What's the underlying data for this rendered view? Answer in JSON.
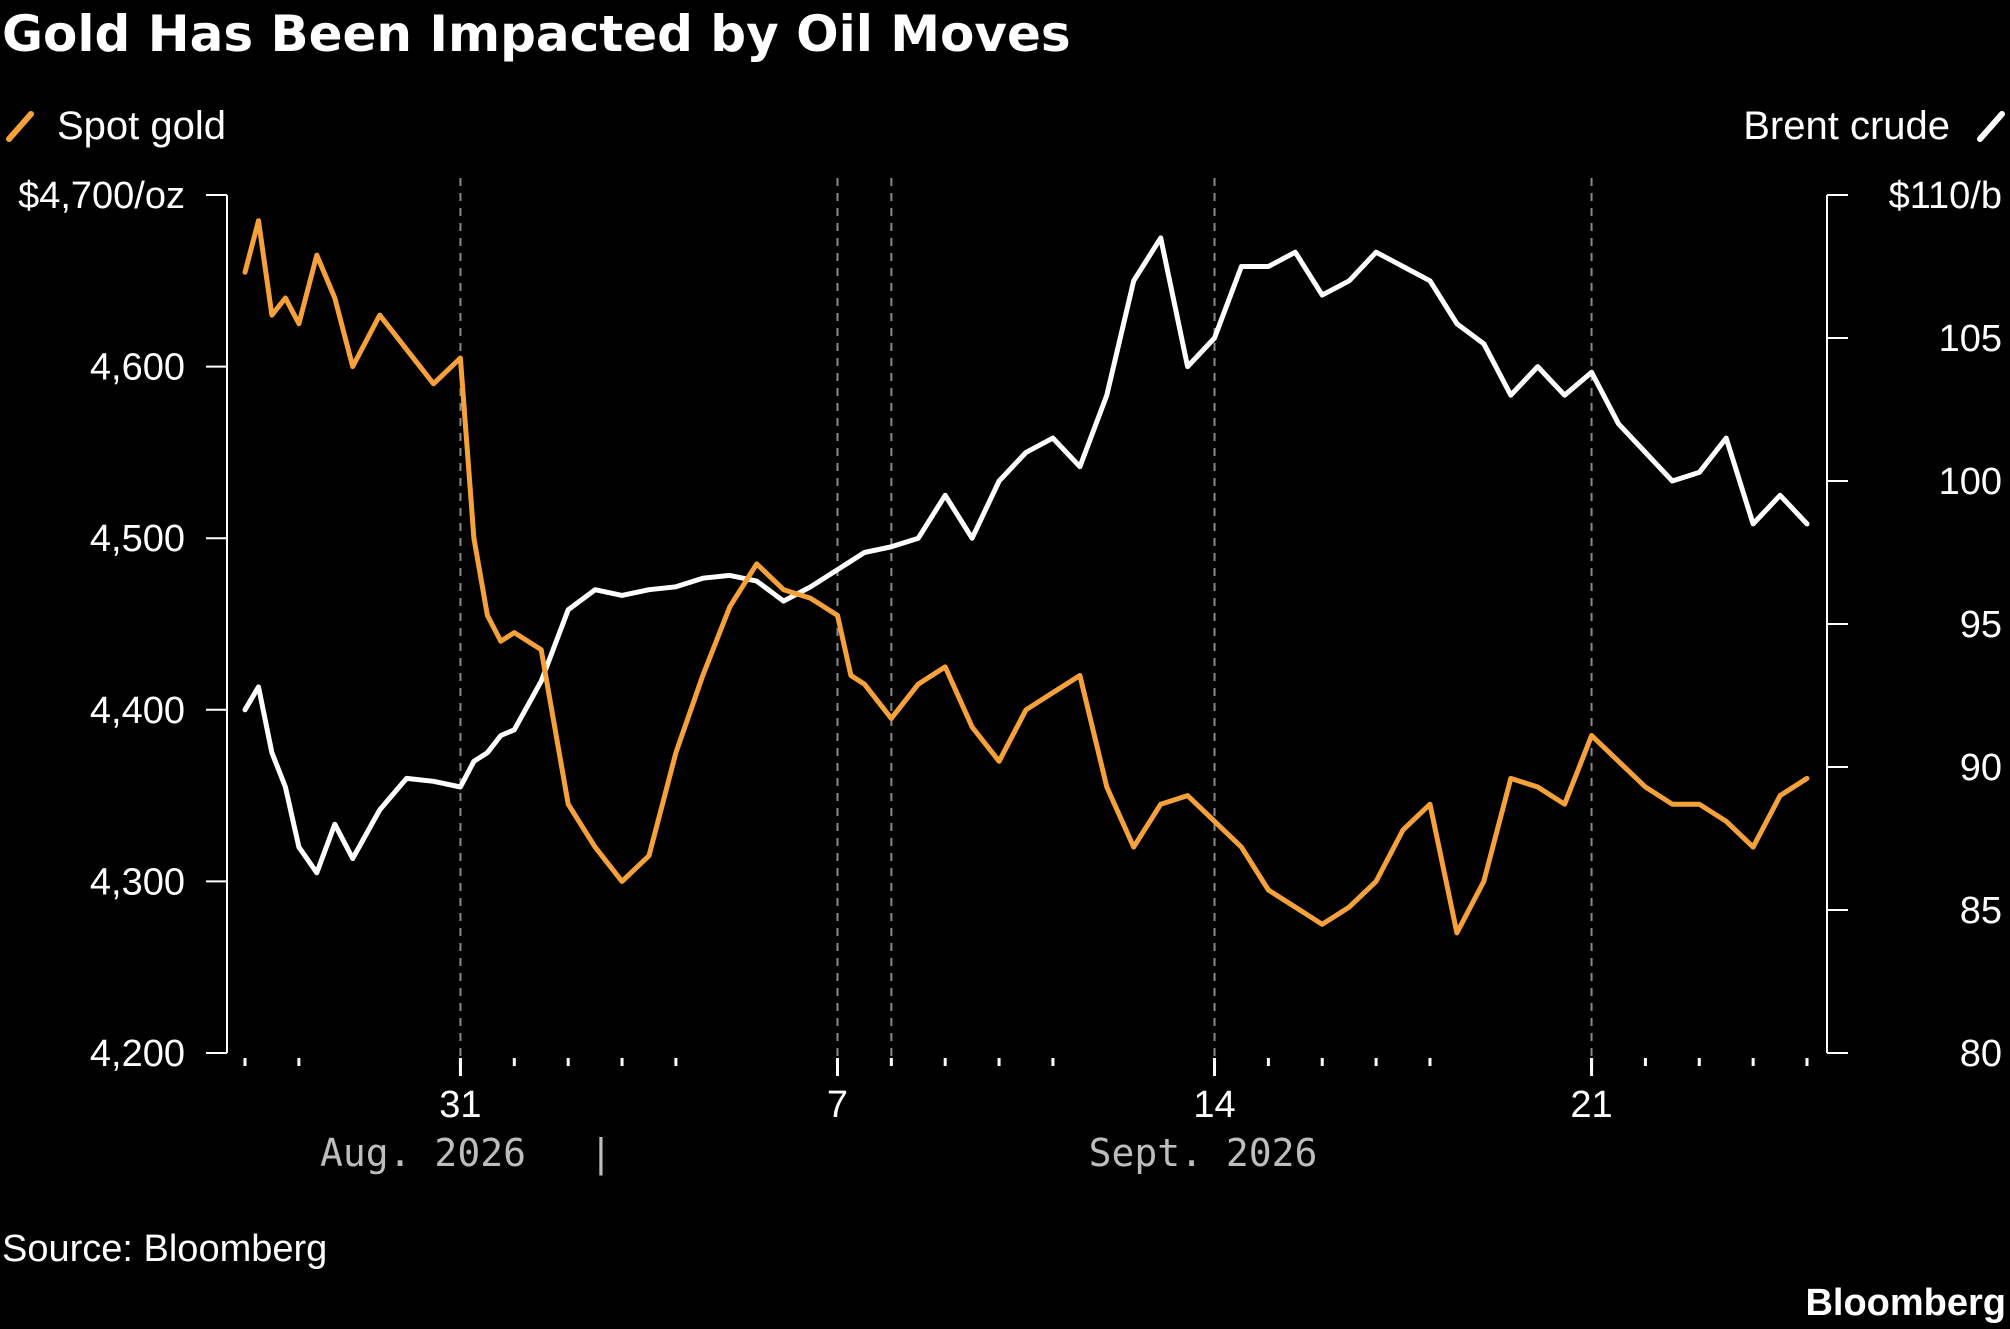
{
  "header": {
    "title": "Gold Has Been Impacted by Oil Moves"
  },
  "legend": {
    "left": "Spot gold",
    "right": "Brent crude"
  },
  "footer": {
    "source": "Source: Bloomberg",
    "brand": "Bloomberg"
  },
  "chart_data": {
    "type": "line",
    "title": "Gold Has Been Impacted by Oil Moves",
    "source": "Source: Bloomberg",
    "grid": false,
    "legend_placement": "top",
    "x_axis": {
      "type": "date",
      "range": [
        "2026-08-27",
        "2026-09-25"
      ],
      "tick_labels": [
        {
          "date": "2026-08-31",
          "label": "31"
        },
        {
          "date": "2026-09-07",
          "label": "7"
        },
        {
          "date": "2026-09-14",
          "label": "14"
        },
        {
          "date": "2026-09-21",
          "label": "21"
        }
      ],
      "month_labels": [
        {
          "date": "2026-08-29",
          "label": "Aug. 2026"
        },
        {
          "date": "2026-09-13",
          "label": "Sept. 2026"
        }
      ],
      "month_divider": "|",
      "event_lines": [
        "2026-08-31",
        "2026-09-07",
        "2026-09-08",
        "2026-09-14",
        "2026-09-21"
      ]
    },
    "y_left": {
      "range": [
        4200,
        4700
      ],
      "ticks": [
        4200,
        4300,
        4400,
        4500,
        4600,
        4700
      ],
      "tick_labels": [
        "4,200",
        "4,300",
        "4,400",
        "4,500",
        "4,600",
        "$4,700/oz"
      ]
    },
    "y_right": {
      "range": [
        80,
        110
      ],
      "ticks": [
        80,
        85,
        90,
        95,
        100,
        105,
        110
      ],
      "tick_labels": [
        "80",
        "85",
        "90",
        "95",
        "100",
        "105",
        "$110/b"
      ]
    },
    "series": [
      {
        "name": "Spot gold",
        "axis": "left",
        "color": "#f7a13a",
        "x": [
          "2026-08-27",
          "2026-08-27 06:00",
          "2026-08-27 12:00",
          "2026-08-27 18:00",
          "2026-08-28",
          "2026-08-28 08:00",
          "2026-08-28 16:00",
          "2026-08-29",
          "2026-08-29 12:00",
          "2026-08-30",
          "2026-08-30 12:00",
          "2026-08-31",
          "2026-08-31 06:00",
          "2026-08-31 12:00",
          "2026-08-31 18:00",
          "2026-09-01",
          "2026-09-01 12:00",
          "2026-09-02",
          "2026-09-02 12:00",
          "2026-09-03",
          "2026-09-03 12:00",
          "2026-09-04",
          "2026-09-04 12:00",
          "2026-09-05",
          "2026-09-05 12:00",
          "2026-09-06",
          "2026-09-06 12:00",
          "2026-09-07",
          "2026-09-07 06:00",
          "2026-09-07 12:00",
          "2026-09-08",
          "2026-09-08 12:00",
          "2026-09-09",
          "2026-09-09 12:00",
          "2026-09-10",
          "2026-09-10 12:00",
          "2026-09-11",
          "2026-09-11 12:00",
          "2026-09-12",
          "2026-09-12 12:00",
          "2026-09-13",
          "2026-09-13 12:00",
          "2026-09-14",
          "2026-09-14 12:00",
          "2026-09-15",
          "2026-09-15 12:00",
          "2026-09-16",
          "2026-09-16 12:00",
          "2026-09-17",
          "2026-09-17 12:00",
          "2026-09-18",
          "2026-09-18 12:00",
          "2026-09-19",
          "2026-09-19 12:00",
          "2026-09-20",
          "2026-09-20 12:00",
          "2026-09-21",
          "2026-09-21 12:00",
          "2026-09-22",
          "2026-09-22 12:00",
          "2026-09-23",
          "2026-09-23 12:00",
          "2026-09-24",
          "2026-09-24 12:00",
          "2026-09-25"
        ],
        "values": [
          4655,
          4685,
          4630,
          4640,
          4625,
          4665,
          4640,
          4600,
          4630,
          4610,
          4590,
          4605,
          4500,
          4455,
          4440,
          4445,
          4435,
          4345,
          4320,
          4300,
          4315,
          4375,
          4420,
          4460,
          4485,
          4470,
          4465,
          4455,
          4420,
          4415,
          4395,
          4415,
          4425,
          4390,
          4370,
          4400,
          4410,
          4420,
          4355,
          4320,
          4345,
          4350,
          4335,
          4320,
          4295,
          4285,
          4275,
          4285,
          4300,
          4330,
          4345,
          4270,
          4300,
          4360,
          4355,
          4345,
          4385,
          4370,
          4355,
          4345,
          4345,
          4335,
          4320,
          4350,
          4360
        ]
      },
      {
        "name": "Brent crude",
        "axis": "right",
        "color": "#ffffff",
        "x": [
          "2026-08-27",
          "2026-08-27 06:00",
          "2026-08-27 12:00",
          "2026-08-27 18:00",
          "2026-08-28",
          "2026-08-28 08:00",
          "2026-08-28 16:00",
          "2026-08-29",
          "2026-08-29 12:00",
          "2026-08-30",
          "2026-08-30 12:00",
          "2026-08-31",
          "2026-08-31 06:00",
          "2026-08-31 12:00",
          "2026-08-31 18:00",
          "2026-09-01",
          "2026-09-01 12:00",
          "2026-09-02",
          "2026-09-02 12:00",
          "2026-09-03",
          "2026-09-03 12:00",
          "2026-09-04",
          "2026-09-04 12:00",
          "2026-09-05",
          "2026-09-05 12:00",
          "2026-09-06",
          "2026-09-06 12:00",
          "2026-09-07",
          "2026-09-07 06:00",
          "2026-09-07 12:00",
          "2026-09-08",
          "2026-09-08 12:00",
          "2026-09-09",
          "2026-09-09 12:00",
          "2026-09-10",
          "2026-09-10 12:00",
          "2026-09-11",
          "2026-09-11 12:00",
          "2026-09-12",
          "2026-09-12 12:00",
          "2026-09-13",
          "2026-09-13 12:00",
          "2026-09-14",
          "2026-09-14 12:00",
          "2026-09-15",
          "2026-09-15 12:00",
          "2026-09-16",
          "2026-09-16 12:00",
          "2026-09-17",
          "2026-09-17 12:00",
          "2026-09-18",
          "2026-09-18 12:00",
          "2026-09-19",
          "2026-09-19 12:00",
          "2026-09-20",
          "2026-09-20 12:00",
          "2026-09-21",
          "2026-09-21 12:00",
          "2026-09-22",
          "2026-09-22 12:00",
          "2026-09-23",
          "2026-09-23 12:00",
          "2026-09-24",
          "2026-09-24 12:00",
          "2026-09-25"
        ],
        "values": [
          92.0,
          92.8,
          90.5,
          89.3,
          87.2,
          86.3,
          88.0,
          86.8,
          88.5,
          89.6,
          89.5,
          89.3,
          90.2,
          90.5,
          91.1,
          91.3,
          93.0,
          95.5,
          96.2,
          96.0,
          96.2,
          96.3,
          96.6,
          96.7,
          96.5,
          95.8,
          96.3,
          96.9,
          97.2,
          97.5,
          97.7,
          98.0,
          99.5,
          98.0,
          100.0,
          101.0,
          101.5,
          100.5,
          103.0,
          107.0,
          108.5,
          104.0,
          105.0,
          107.5,
          107.5,
          108.0,
          106.5,
          107.0,
          108.0,
          107.5,
          107.0,
          105.5,
          104.8,
          103.0,
          104.0,
          103.0,
          103.8,
          102.0,
          101.0,
          100.0,
          100.3,
          101.5,
          98.5,
          99.5,
          98.5
        ]
      }
    ]
  }
}
